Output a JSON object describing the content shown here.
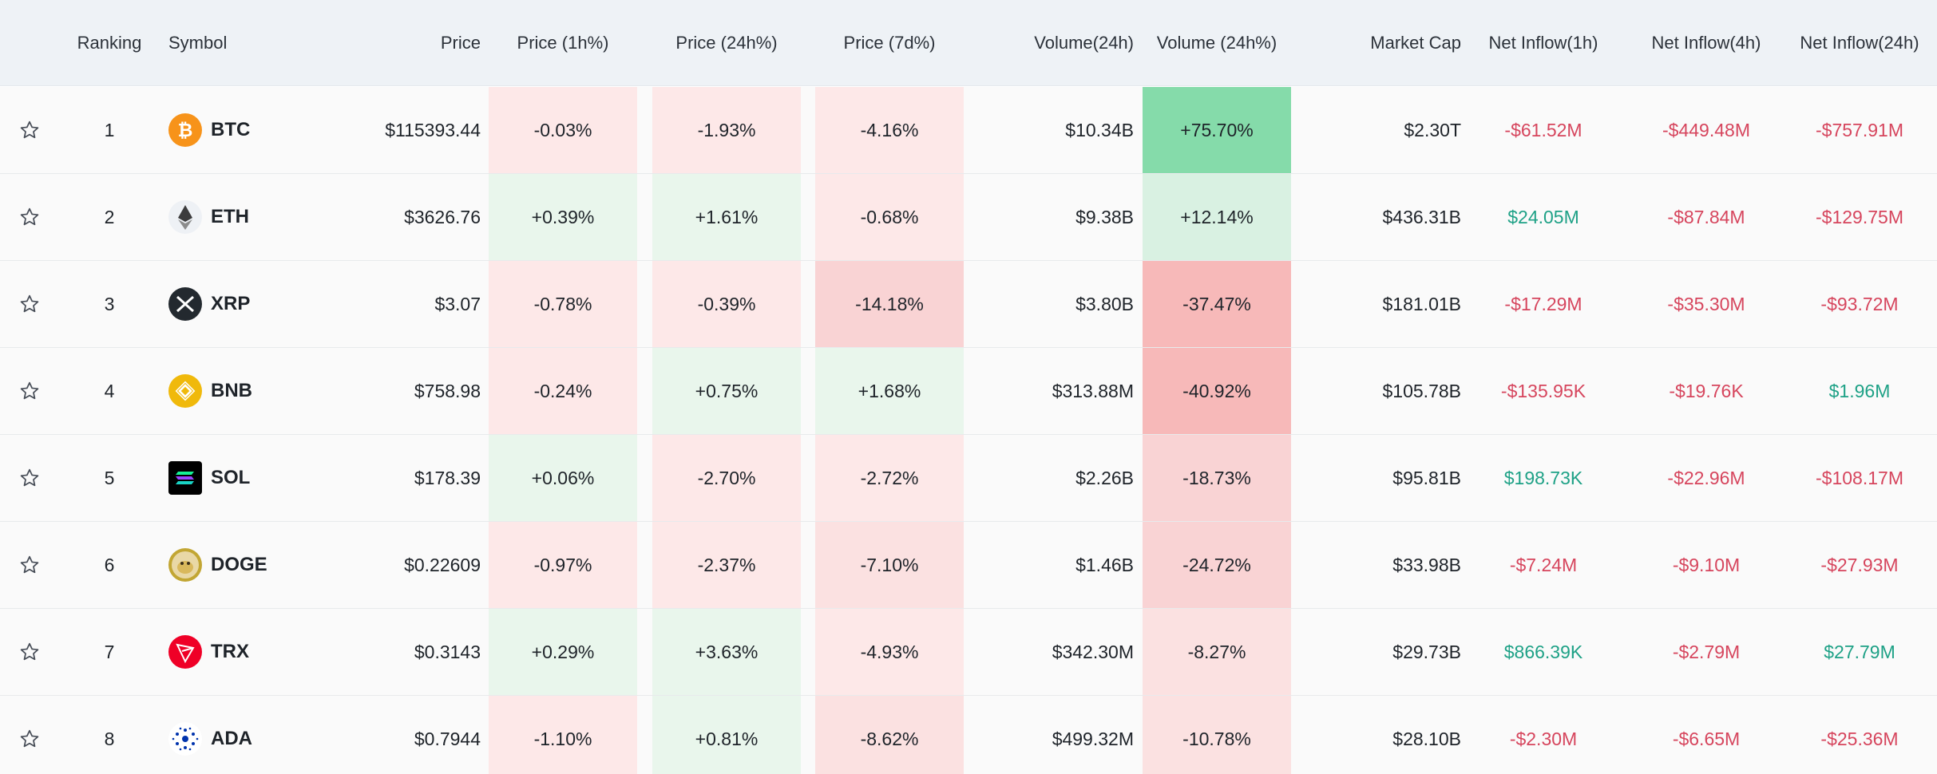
{
  "header": {
    "ranking": "Ranking",
    "symbol": "Symbol",
    "price": "Price",
    "price_1h": "Price (1h%)",
    "price_24h": "Price (24h%)",
    "price_7d": "Price (7d%)",
    "volume_24h": "Volume(24h)",
    "volume_change_24h": "Volume (24h%)",
    "market_cap": "Market Cap",
    "net_inflow_1h": "Net Inflow(1h)",
    "net_inflow_4h": "Net Inflow(4h)",
    "net_inflow_24h": "Net Inflow(24h)"
  },
  "colors": {
    "positive_text": "#1ea186",
    "negative_text": "#d6455d",
    "header_bg": "#eef2f6"
  },
  "rows": [
    {
      "rank": "1",
      "symbol": "BTC",
      "icon": "bitcoin-icon",
      "price": "$115393.44",
      "p1h": "-0.03%",
      "p24h": "-1.93%",
      "p7d": "-4.16%",
      "vol": "$10.34B",
      "vol24": "+75.70%",
      "mcap": "$2.30T",
      "in1h": "-$61.52M",
      "in4h": "-$449.48M",
      "in24h": "-$757.91M"
    },
    {
      "rank": "2",
      "symbol": "ETH",
      "icon": "ethereum-icon",
      "price": "$3626.76",
      "p1h": "+0.39%",
      "p24h": "+1.61%",
      "p7d": "-0.68%",
      "vol": "$9.38B",
      "vol24": "+12.14%",
      "mcap": "$436.31B",
      "in1h": "$24.05M",
      "in4h": "-$87.84M",
      "in24h": "-$129.75M"
    },
    {
      "rank": "3",
      "symbol": "XRP",
      "icon": "xrp-icon",
      "price": "$3.07",
      "p1h": "-0.78%",
      "p24h": "-0.39%",
      "p7d": "-14.18%",
      "vol": "$3.80B",
      "vol24": "-37.47%",
      "mcap": "$181.01B",
      "in1h": "-$17.29M",
      "in4h": "-$35.30M",
      "in24h": "-$93.72M"
    },
    {
      "rank": "4",
      "symbol": "BNB",
      "icon": "bnb-icon",
      "price": "$758.98",
      "p1h": "-0.24%",
      "p24h": "+0.75%",
      "p7d": "+1.68%",
      "vol": "$313.88M",
      "vol24": "-40.92%",
      "mcap": "$105.78B",
      "in1h": "-$135.95K",
      "in4h": "-$19.76K",
      "in24h": "$1.96M"
    },
    {
      "rank": "5",
      "symbol": "SOL",
      "icon": "solana-icon",
      "price": "$178.39",
      "p1h": "+0.06%",
      "p24h": "-2.70%",
      "p7d": "-2.72%",
      "vol": "$2.26B",
      "vol24": "-18.73%",
      "mcap": "$95.81B",
      "in1h": "$198.73K",
      "in4h": "-$22.96M",
      "in24h": "-$108.17M"
    },
    {
      "rank": "6",
      "symbol": "DOGE",
      "icon": "dogecoin-icon",
      "price": "$0.22609",
      "p1h": "-0.97%",
      "p24h": "-2.37%",
      "p7d": "-7.10%",
      "vol": "$1.46B",
      "vol24": "-24.72%",
      "mcap": "$33.98B",
      "in1h": "-$7.24M",
      "in4h": "-$9.10M",
      "in24h": "-$27.93M"
    },
    {
      "rank": "7",
      "symbol": "TRX",
      "icon": "tron-icon",
      "price": "$0.3143",
      "p1h": "+0.29%",
      "p24h": "+3.63%",
      "p7d": "-4.93%",
      "vol": "$342.30M",
      "vol24": "-8.27%",
      "mcap": "$29.73B",
      "in1h": "$866.39K",
      "in4h": "-$2.79M",
      "in24h": "$27.79M"
    },
    {
      "rank": "8",
      "symbol": "ADA",
      "icon": "cardano-icon",
      "price": "$0.7944",
      "p1h": "-1.10%",
      "p24h": "+0.81%",
      "p7d": "-8.62%",
      "vol": "$499.32M",
      "vol24": "-10.78%",
      "mcap": "$28.10B",
      "in1h": "-$2.30M",
      "in4h": "-$6.65M",
      "in24h": "-$25.36M"
    }
  ]
}
